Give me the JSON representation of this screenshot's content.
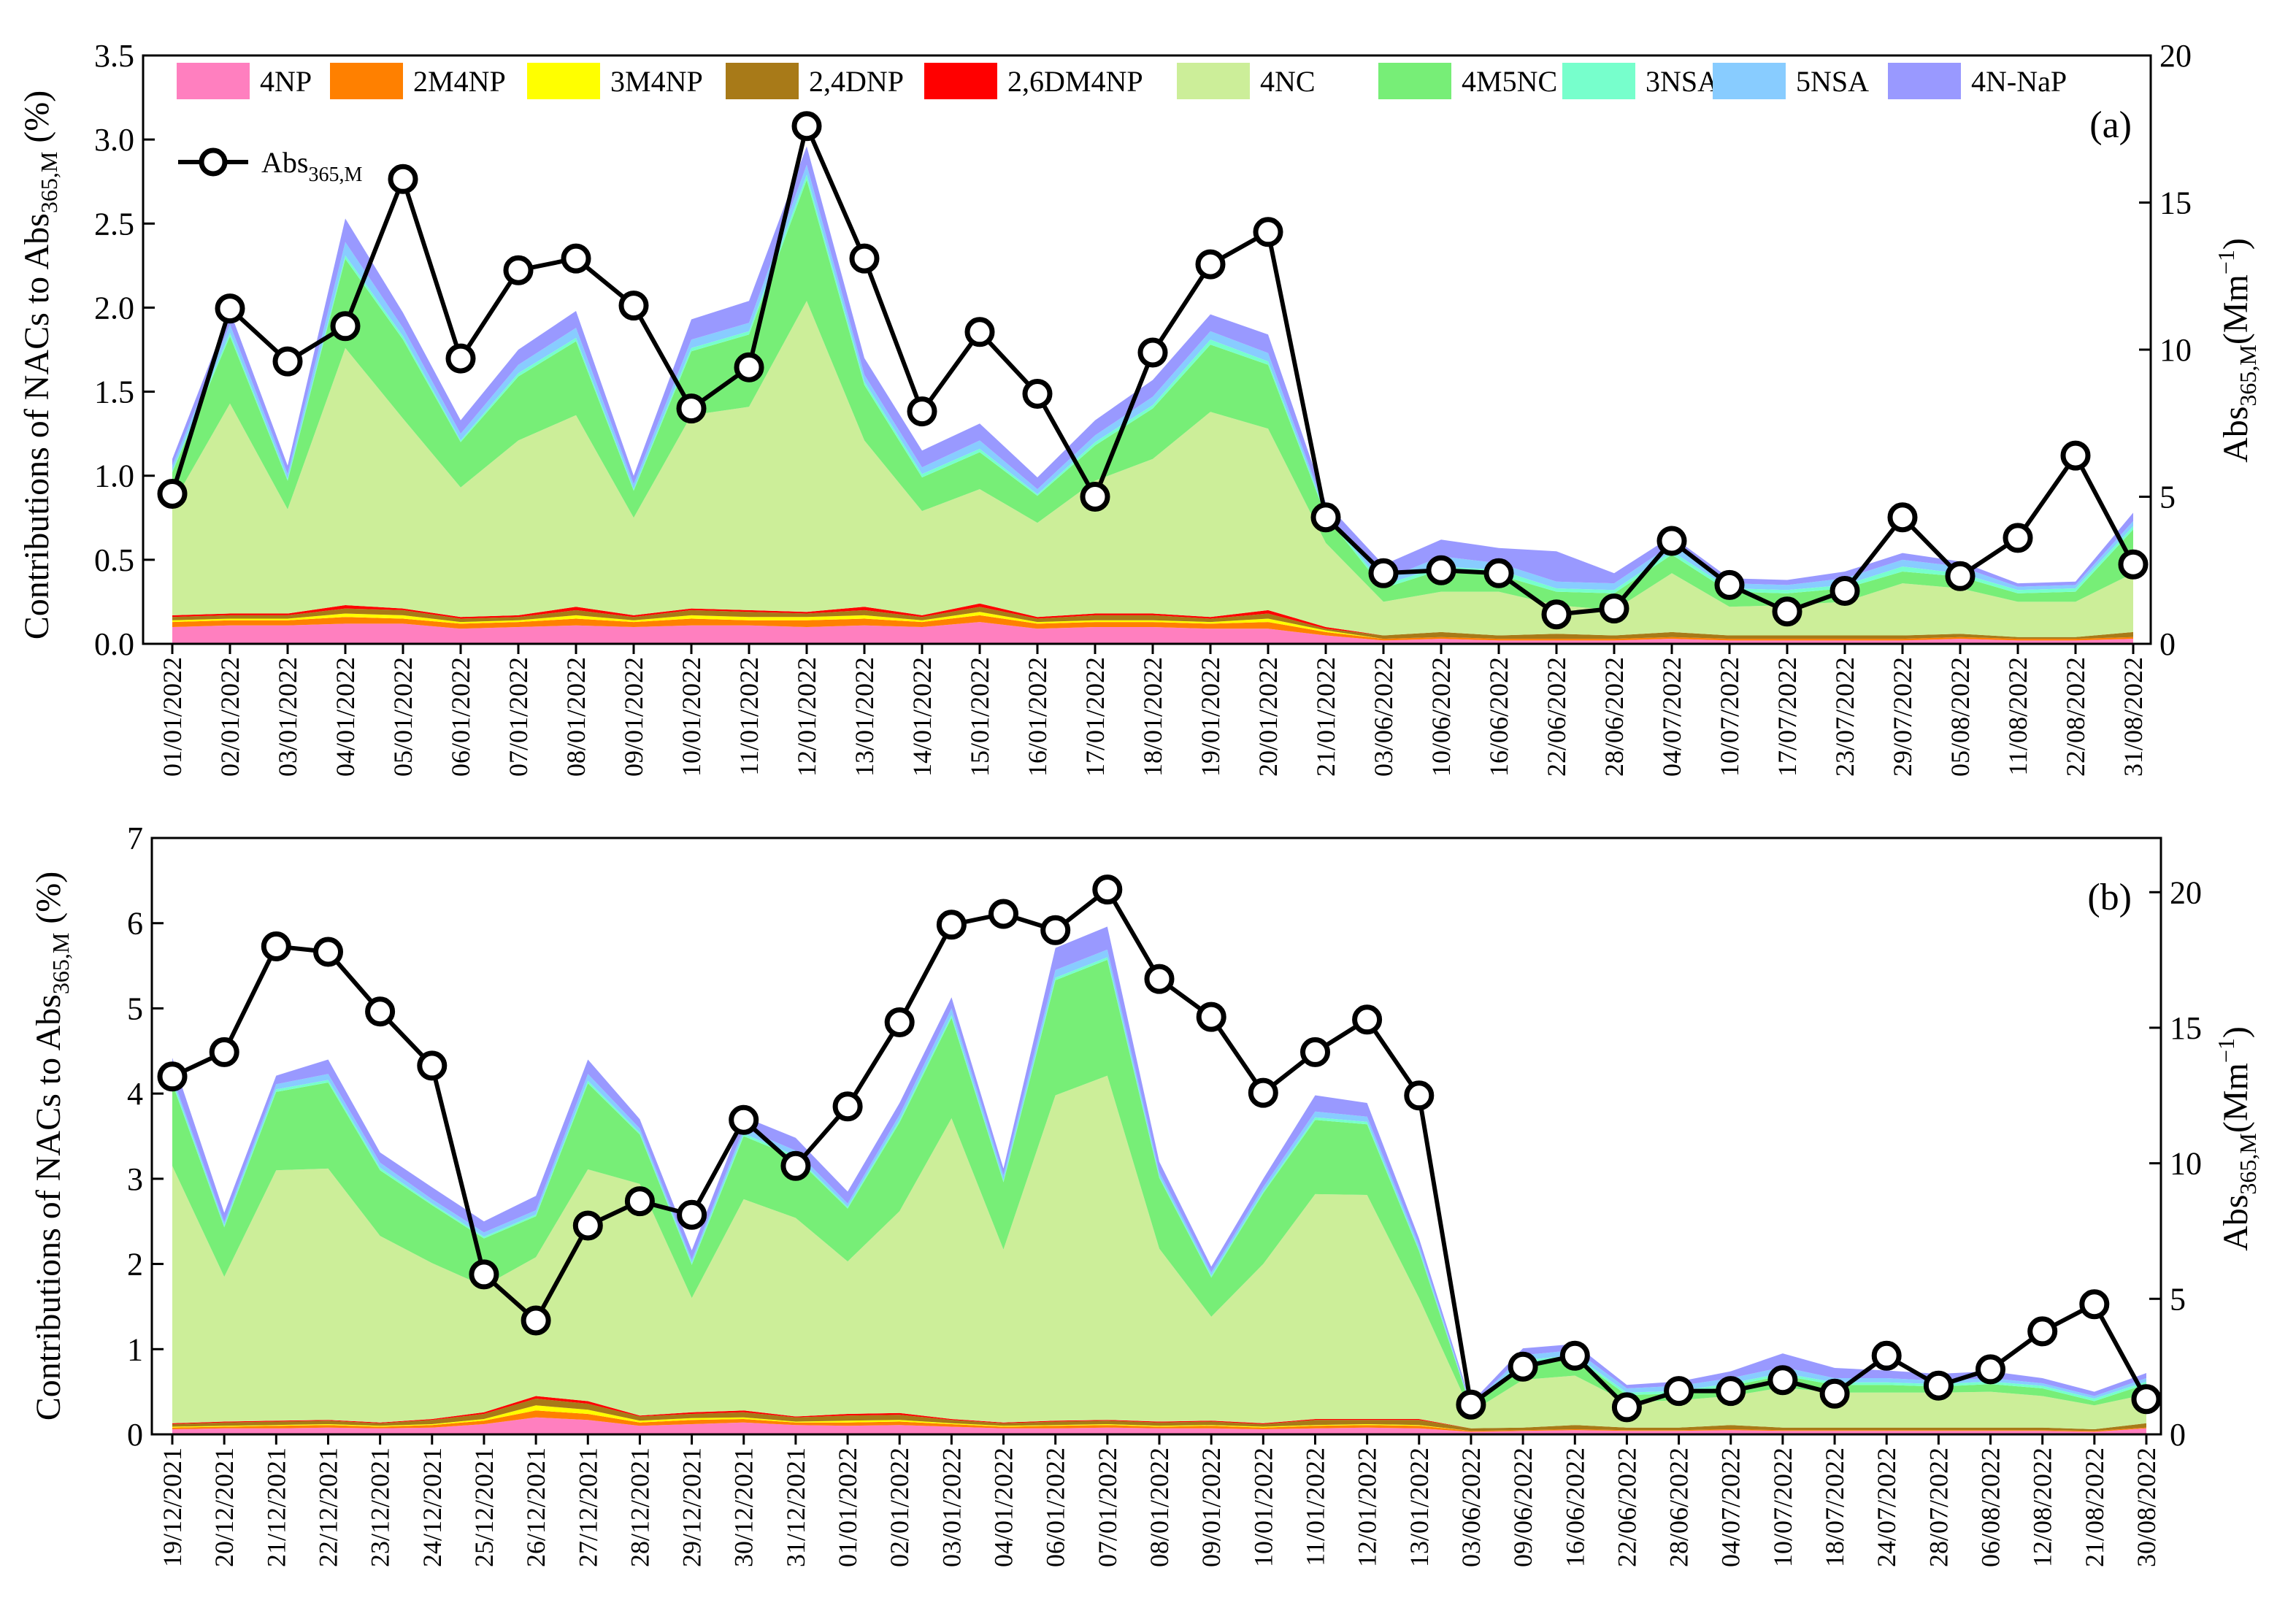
{
  "figure": {
    "y_label_left": "Contributions of NACs to Abs",
    "y_label_left_sub": "365,M",
    "y_label_left_unit": " (%)",
    "y_label_right": "Abs",
    "y_label_right_sub": "365,M",
    "y_label_right_unit": "(Mm",
    "y_label_right_sup": "−1",
    "y_label_right_close": ")"
  },
  "colors": {
    "4NP": "#ff7fbf",
    "2M4NP": "#ff8000",
    "3M4NP": "#ffff00",
    "2,4DNP": "#a87a18",
    "2,6DM4NP": "#ff0000",
    "4NC": "#ccee99",
    "4M5NC": "#77ee77",
    "3NSA": "#77ffcc",
    "5NSA": "#88ccff",
    "4N-NaP": "#9999ff"
  },
  "legend": {
    "items": [
      "4NP",
      "2M4NP",
      "3M4NP",
      "2,4DNP",
      "2,6DM4NP",
      "4NC",
      "4M5NC",
      "3NSA",
      "5NSA",
      "4N-NaP"
    ],
    "line_label": "Abs",
    "line_label_sub": "365,M"
  },
  "chart_data": [
    {
      "type": "area",
      "panel_label": "(a)",
      "stacked": true,
      "ylim_left": [
        0,
        3.5
      ],
      "yticks_left": [
        "0.0",
        "0.5",
        "1.0",
        "1.5",
        "2.0",
        "2.5",
        "3.0",
        "3.5"
      ],
      "ylim_right": [
        0,
        20
      ],
      "yticks_right": [
        "0",
        "5",
        "10",
        "15",
        "20"
      ],
      "categories": [
        "01/01/2022",
        "02/01/2022",
        "03/01/2022",
        "04/01/2022",
        "05/01/2022",
        "06/01/2022",
        "07/01/2022",
        "08/01/2022",
        "09/01/2022",
        "10/01/2022",
        "11/01/2022",
        "12/01/2022",
        "13/01/2022",
        "14/01/2022",
        "15/01/2022",
        "16/01/2022",
        "17/01/2022",
        "18/01/2022",
        "19/01/2022",
        "20/01/2022",
        "21/01/2022",
        "03/06/2022",
        "10/06/2022",
        "16/06/2022",
        "22/06/2022",
        "28/06/2022",
        "04/07/2022",
        "10/07/2022",
        "17/07/2022",
        "23/07/2022",
        "29/07/2022",
        "05/08/2022",
        "11/08/2022",
        "22/08/2022",
        "31/08/2022"
      ],
      "series": [
        {
          "name": "4NP",
          "values": [
            0.1,
            0.11,
            0.11,
            0.12,
            0.12,
            0.09,
            0.1,
            0.11,
            0.1,
            0.11,
            0.11,
            0.1,
            0.11,
            0.1,
            0.13,
            0.09,
            0.1,
            0.1,
            0.09,
            0.09,
            0.05,
            0.02,
            0.03,
            0.02,
            0.02,
            0.02,
            0.03,
            0.02,
            0.02,
            0.02,
            0.02,
            0.03,
            0.02,
            0.02,
            0.03
          ]
        },
        {
          "name": "2M4NP",
          "values": [
            0.03,
            0.03,
            0.03,
            0.04,
            0.03,
            0.03,
            0.03,
            0.04,
            0.03,
            0.04,
            0.03,
            0.04,
            0.04,
            0.03,
            0.04,
            0.03,
            0.03,
            0.03,
            0.03,
            0.04,
            0.02,
            0.01,
            0.01,
            0.01,
            0.01,
            0.01,
            0.01,
            0.01,
            0.01,
            0.01,
            0.01,
            0.01,
            0.01,
            0.01,
            0.01
          ]
        },
        {
          "name": "3M4NP",
          "values": [
            0.01,
            0.01,
            0.01,
            0.02,
            0.02,
            0.01,
            0.01,
            0.02,
            0.01,
            0.02,
            0.02,
            0.02,
            0.02,
            0.01,
            0.02,
            0.01,
            0.01,
            0.01,
            0.01,
            0.02,
            0.01,
            0.0,
            0.0,
            0.0,
            0.0,
            0.0,
            0.0,
            0.0,
            0.0,
            0.0,
            0.0,
            0.0,
            0.0,
            0.0,
            0.0
          ]
        },
        {
          "name": "2,4DNP",
          "values": [
            0.02,
            0.02,
            0.02,
            0.03,
            0.03,
            0.02,
            0.02,
            0.03,
            0.02,
            0.03,
            0.03,
            0.02,
            0.03,
            0.02,
            0.03,
            0.02,
            0.03,
            0.03,
            0.02,
            0.03,
            0.01,
            0.02,
            0.03,
            0.02,
            0.03,
            0.02,
            0.03,
            0.02,
            0.02,
            0.02,
            0.02,
            0.02,
            0.01,
            0.01,
            0.03
          ]
        },
        {
          "name": "2,6DM4NP",
          "values": [
            0.01,
            0.01,
            0.01,
            0.02,
            0.01,
            0.01,
            0.01,
            0.02,
            0.01,
            0.01,
            0.01,
            0.01,
            0.02,
            0.01,
            0.02,
            0.01,
            0.01,
            0.01,
            0.01,
            0.02,
            0.01,
            0.0,
            0.0,
            0.0,
            0.0,
            0.0,
            0.0,
            0.0,
            0.0,
            0.0,
            0.0,
            0.0,
            0.0,
            0.0,
            0.0
          ]
        },
        {
          "name": "4NC",
          "values": [
            0.66,
            1.25,
            0.62,
            1.53,
            1.13,
            0.77,
            1.04,
            1.14,
            0.58,
            1.15,
            1.21,
            1.85,
            0.99,
            0.62,
            0.68,
            0.56,
            0.79,
            0.92,
            1.22,
            1.08,
            0.5,
            0.2,
            0.24,
            0.26,
            0.17,
            0.15,
            0.35,
            0.17,
            0.18,
            0.2,
            0.31,
            0.27,
            0.21,
            0.21,
            0.35
          ]
        },
        {
          "name": "4M5NC",
          "values": [
            0.19,
            0.4,
            0.17,
            0.53,
            0.47,
            0.27,
            0.38,
            0.44,
            0.16,
            0.38,
            0.43,
            0.72,
            0.33,
            0.2,
            0.22,
            0.16,
            0.21,
            0.3,
            0.4,
            0.38,
            0.16,
            0.08,
            0.13,
            0.1,
            0.08,
            0.1,
            0.11,
            0.09,
            0.07,
            0.08,
            0.07,
            0.07,
            0.05,
            0.06,
            0.26
          ]
        },
        {
          "name": "3NSA",
          "values": [
            0.01,
            0.02,
            0.01,
            0.02,
            0.02,
            0.01,
            0.02,
            0.02,
            0.01,
            0.02,
            0.02,
            0.03,
            0.02,
            0.02,
            0.02,
            0.01,
            0.02,
            0.02,
            0.03,
            0.02,
            0.01,
            0.02,
            0.02,
            0.03,
            0.02,
            0.02,
            0.02,
            0.02,
            0.02,
            0.02,
            0.03,
            0.02,
            0.02,
            0.02,
            0.02
          ]
        },
        {
          "name": "5NSA",
          "values": [
            0.03,
            0.05,
            0.03,
            0.08,
            0.05,
            0.04,
            0.05,
            0.06,
            0.03,
            0.05,
            0.05,
            0.06,
            0.04,
            0.04,
            0.05,
            0.03,
            0.04,
            0.05,
            0.05,
            0.05,
            0.02,
            0.03,
            0.06,
            0.04,
            0.04,
            0.04,
            0.04,
            0.03,
            0.03,
            0.04,
            0.04,
            0.04,
            0.02,
            0.02,
            0.03
          ]
        },
        {
          "name": "4N-NaP",
          "values": [
            0.04,
            0.08,
            0.05,
            0.14,
            0.09,
            0.08,
            0.09,
            0.1,
            0.05,
            0.12,
            0.13,
            0.11,
            0.1,
            0.1,
            0.1,
            0.07,
            0.09,
            0.1,
            0.1,
            0.11,
            0.05,
            0.09,
            0.1,
            0.09,
            0.18,
            0.06,
            0.05,
            0.03,
            0.03,
            0.04,
            0.04,
            0.03,
            0.02,
            0.02,
            0.05
          ]
        }
      ],
      "line": {
        "name": "Abs365,M",
        "axis": "right",
        "values": [
          5.1,
          11.4,
          9.6,
          10.8,
          15.8,
          9.7,
          12.7,
          13.1,
          11.5,
          8.0,
          9.4,
          17.6,
          13.1,
          7.9,
          10.6,
          8.5,
          5.0,
          9.9,
          12.9,
          14.0,
          4.3,
          2.4,
          2.5,
          2.4,
          1.0,
          1.2,
          3.5,
          2.0,
          1.1,
          1.8,
          4.3,
          2.3,
          3.6,
          6.4,
          2.7
        ]
      }
    },
    {
      "type": "area",
      "panel_label": "(b)",
      "stacked": true,
      "ylim_left": [
        0,
        7
      ],
      "yticks_left": [
        "0",
        "1",
        "2",
        "3",
        "4",
        "5",
        "6",
        "7"
      ],
      "ylim_right": [
        0,
        22
      ],
      "yticks_right": [
        "0",
        "5",
        "10",
        "15",
        "20"
      ],
      "categories": [
        "19/12/2021",
        "20/12/2021",
        "21/12/2021",
        "22/12/2021",
        "23/12/2021",
        "24/12/2021",
        "25/12/2021",
        "26/12/2021",
        "27/12/2021",
        "28/12/2021",
        "29/12/2021",
        "30/12/2021",
        "31/12/2021",
        "01/01/2022",
        "02/01/2022",
        "03/01/2022",
        "04/01/2022",
        "06/01/2022",
        "07/01/2022",
        "08/01/2022",
        "09/01/2022",
        "10/01/2022",
        "11/01/2022",
        "12/01/2022",
        "13/01/2022",
        "03/06/2022",
        "09/06/2022",
        "16/06/2022",
        "22/06/2022",
        "28/06/2022",
        "04/07/2022",
        "10/07/2022",
        "18/07/2022",
        "24/07/2022",
        "28/07/2022",
        "06/08/2022",
        "12/08/2022",
        "21/08/2022",
        "30/08/2022"
      ],
      "series": [
        {
          "name": "4NP",
          "values": [
            0.06,
            0.07,
            0.07,
            0.08,
            0.07,
            0.08,
            0.12,
            0.2,
            0.17,
            0.1,
            0.12,
            0.14,
            0.11,
            0.1,
            0.11,
            0.09,
            0.07,
            0.07,
            0.08,
            0.07,
            0.07,
            0.06,
            0.07,
            0.08,
            0.07,
            0.03,
            0.04,
            0.05,
            0.04,
            0.04,
            0.05,
            0.04,
            0.04,
            0.04,
            0.04,
            0.04,
            0.04,
            0.03,
            0.07
          ]
        },
        {
          "name": "2M4NP",
          "values": [
            0.02,
            0.02,
            0.03,
            0.03,
            0.02,
            0.03,
            0.04,
            0.08,
            0.07,
            0.04,
            0.05,
            0.04,
            0.03,
            0.04,
            0.04,
            0.03,
            0.02,
            0.03,
            0.03,
            0.02,
            0.03,
            0.02,
            0.03,
            0.03,
            0.03,
            0.01,
            0.01,
            0.01,
            0.01,
            0.01,
            0.01,
            0.01,
            0.01,
            0.01,
            0.01,
            0.01,
            0.01,
            0.01,
            0.01
          ]
        },
        {
          "name": "3M4NP",
          "values": [
            0.01,
            0.01,
            0.01,
            0.01,
            0.01,
            0.01,
            0.02,
            0.06,
            0.05,
            0.02,
            0.02,
            0.02,
            0.01,
            0.02,
            0.02,
            0.01,
            0.01,
            0.01,
            0.01,
            0.01,
            0.01,
            0.01,
            0.01,
            0.01,
            0.01,
            0.0,
            0.0,
            0.0,
            0.0,
            0.0,
            0.0,
            0.0,
            0.0,
            0.0,
            0.0,
            0.0,
            0.0,
            0.0,
            0.0
          ]
        },
        {
          "name": "2,4DNP",
          "values": [
            0.03,
            0.04,
            0.04,
            0.04,
            0.03,
            0.05,
            0.06,
            0.08,
            0.07,
            0.05,
            0.05,
            0.06,
            0.05,
            0.06,
            0.06,
            0.04,
            0.03,
            0.04,
            0.04,
            0.04,
            0.04,
            0.03,
            0.06,
            0.05,
            0.06,
            0.03,
            0.03,
            0.05,
            0.03,
            0.03,
            0.05,
            0.03,
            0.03,
            0.03,
            0.03,
            0.03,
            0.03,
            0.02,
            0.05
          ]
        },
        {
          "name": "2,6DM4NP",
          "values": [
            0.01,
            0.01,
            0.01,
            0.01,
            0.01,
            0.01,
            0.02,
            0.03,
            0.03,
            0.01,
            0.02,
            0.02,
            0.01,
            0.02,
            0.02,
            0.01,
            0.01,
            0.01,
            0.01,
            0.01,
            0.01,
            0.01,
            0.01,
            0.01,
            0.01,
            0.0,
            0.0,
            0.0,
            0.0,
            0.0,
            0.0,
            0.0,
            0.0,
            0.0,
            0.0,
            0.0,
            0.0,
            0.0,
            0.0
          ]
        },
        {
          "name": "4NC",
          "values": [
            3.02,
            1.7,
            2.94,
            2.95,
            2.19,
            1.83,
            1.48,
            1.63,
            2.72,
            2.72,
            1.34,
            2.48,
            2.33,
            1.79,
            2.37,
            3.53,
            2.03,
            3.82,
            4.04,
            2.03,
            1.22,
            1.87,
            2.64,
            2.63,
            1.42,
            0.19,
            0.56,
            0.58,
            0.3,
            0.32,
            0.34,
            0.47,
            0.41,
            0.41,
            0.41,
            0.42,
            0.37,
            0.28,
            0.34
          ]
        },
        {
          "name": "4M5NC",
          "values": [
            0.97,
            0.58,
            0.92,
            1.01,
            0.77,
            0.68,
            0.56,
            0.48,
            1.01,
            0.58,
            0.39,
            0.74,
            0.71,
            0.62,
            1.04,
            1.18,
            0.79,
            1.35,
            1.36,
            0.83,
            0.46,
            0.83,
            0.87,
            0.83,
            0.55,
            0.05,
            0.2,
            0.21,
            0.08,
            0.08,
            0.12,
            0.14,
            0.09,
            0.09,
            0.07,
            0.09,
            0.09,
            0.05,
            0.12
          ]
        },
        {
          "name": "3NSA",
          "values": [
            0.03,
            0.02,
            0.03,
            0.03,
            0.03,
            0.02,
            0.02,
            0.02,
            0.03,
            0.02,
            0.02,
            0.03,
            0.02,
            0.02,
            0.03,
            0.03,
            0.02,
            0.03,
            0.03,
            0.02,
            0.02,
            0.02,
            0.03,
            0.03,
            0.02,
            0.01,
            0.03,
            0.03,
            0.03,
            0.03,
            0.03,
            0.03,
            0.03,
            0.03,
            0.03,
            0.03,
            0.03,
            0.03,
            0.03
          ]
        },
        {
          "name": "5NSA",
          "values": [
            0.05,
            0.04,
            0.06,
            0.07,
            0.06,
            0.05,
            0.05,
            0.05,
            0.08,
            0.05,
            0.04,
            0.06,
            0.06,
            0.04,
            0.06,
            0.08,
            0.06,
            0.09,
            0.09,
            0.05,
            0.04,
            0.05,
            0.07,
            0.06,
            0.05,
            0.02,
            0.06,
            0.06,
            0.05,
            0.06,
            0.06,
            0.07,
            0.05,
            0.05,
            0.04,
            0.04,
            0.03,
            0.03,
            0.04
          ]
        },
        {
          "name": "4N-NaP",
          "values": [
            0.22,
            0.11,
            0.1,
            0.17,
            0.12,
            0.14,
            0.13,
            0.17,
            0.17,
            0.11,
            0.11,
            0.14,
            0.15,
            0.14,
            0.14,
            0.13,
            0.08,
            0.26,
            0.27,
            0.12,
            0.07,
            0.1,
            0.19,
            0.16,
            0.08,
            0.03,
            0.08,
            0.07,
            0.04,
            0.05,
            0.08,
            0.16,
            0.12,
            0.09,
            0.08,
            0.08,
            0.06,
            0.05,
            0.06
          ]
        }
      ],
      "line": {
        "name": "Abs365,M",
        "axis": "right",
        "values": [
          13.2,
          14.1,
          18.0,
          17.8,
          15.6,
          13.6,
          5.9,
          4.2,
          7.7,
          8.6,
          8.1,
          11.6,
          9.9,
          12.1,
          15.2,
          18.8,
          19.2,
          18.6,
          20.1,
          16.8,
          15.4,
          12.6,
          14.1,
          15.3,
          12.5,
          1.1,
          2.5,
          2.9,
          1.0,
          1.6,
          1.6,
          2.0,
          1.5,
          2.9,
          1.8,
          2.4,
          3.8,
          4.8,
          1.3
        ]
      }
    }
  ]
}
